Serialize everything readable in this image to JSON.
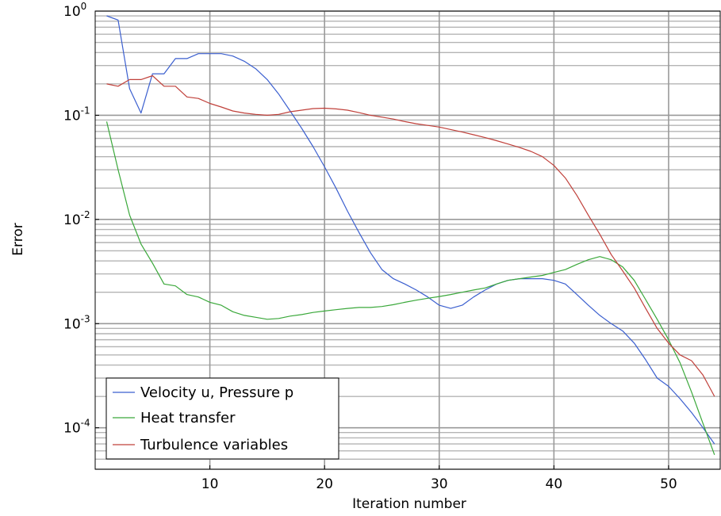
{
  "chart_data": {
    "type": "line",
    "xlabel": "Iteration number",
    "ylabel": "Error",
    "xlim": [
      0,
      54.5
    ],
    "ylim": [
      4e-05,
      1
    ],
    "yscale": "log",
    "grid": true,
    "legend_position": "bottom-left",
    "x_ticks": [
      "10",
      "20",
      "30",
      "40",
      "50"
    ],
    "x_tick_values": [
      10,
      20,
      30,
      40,
      50
    ],
    "y_ticks": [
      {
        "value": 1,
        "base": "10",
        "exp": "0"
      },
      {
        "value": 0.1,
        "base": "10",
        "exp": "-1"
      },
      {
        "value": 0.01,
        "base": "10",
        "exp": "-2"
      },
      {
        "value": 0.001,
        "base": "10",
        "exp": "-3"
      },
      {
        "value": 0.0001,
        "base": "10",
        "exp": "-4"
      }
    ],
    "series": [
      {
        "name": "Velocity u, Pressure p",
        "color": "#3b5fcf",
        "x": [
          1,
          2,
          3,
          4,
          5,
          6,
          7,
          8,
          9,
          10,
          11,
          12,
          13,
          14,
          15,
          16,
          17,
          18,
          19,
          20,
          21,
          22,
          23,
          24,
          25,
          26,
          27,
          28,
          29,
          30,
          31,
          32,
          33,
          34,
          35,
          36,
          37,
          38,
          39,
          40,
          41,
          42,
          43,
          44,
          45,
          46,
          47,
          48,
          49,
          50,
          51,
          52,
          53,
          54
        ],
        "y": [
          0.9,
          0.82,
          0.18,
          0.105,
          0.25,
          0.25,
          0.35,
          0.35,
          0.39,
          0.39,
          0.39,
          0.37,
          0.33,
          0.28,
          0.22,
          0.16,
          0.11,
          0.075,
          0.05,
          0.032,
          0.02,
          0.012,
          0.0075,
          0.0048,
          0.0033,
          0.0027,
          0.0024,
          0.0021,
          0.0018,
          0.0015,
          0.0014,
          0.0015,
          0.0018,
          0.0021,
          0.0024,
          0.0026,
          0.0027,
          0.0027,
          0.0027,
          0.0026,
          0.0024,
          0.0019,
          0.0015,
          0.0012,
          0.001,
          0.00085,
          0.00065,
          0.00045,
          0.0003,
          0.00025,
          0.00019,
          0.00014,
          0.0001,
          7e-05
        ]
      },
      {
        "name": "Heat transfer",
        "color": "#3aa83a",
        "x": [
          1,
          2,
          3,
          4,
          5,
          6,
          7,
          8,
          9,
          10,
          11,
          12,
          13,
          14,
          15,
          16,
          17,
          18,
          19,
          20,
          21,
          22,
          23,
          24,
          25,
          26,
          27,
          28,
          29,
          30,
          31,
          32,
          33,
          34,
          35,
          36,
          37,
          38,
          39,
          40,
          41,
          42,
          43,
          44,
          45,
          46,
          47,
          48,
          49,
          50,
          51,
          52,
          53,
          54
        ],
        "y": [
          0.087,
          0.03,
          0.011,
          0.0058,
          0.0038,
          0.0024,
          0.0023,
          0.0019,
          0.0018,
          0.0016,
          0.0015,
          0.0013,
          0.0012,
          0.00115,
          0.0011,
          0.00112,
          0.00118,
          0.00122,
          0.00128,
          0.00132,
          0.00136,
          0.0014,
          0.00143,
          0.00143,
          0.00146,
          0.00152,
          0.0016,
          0.00168,
          0.00175,
          0.00182,
          0.0019,
          0.002,
          0.0021,
          0.0022,
          0.0024,
          0.0026,
          0.0027,
          0.0028,
          0.0029,
          0.0031,
          0.0033,
          0.0037,
          0.0041,
          0.0044,
          0.0041,
          0.0035,
          0.0026,
          0.0017,
          0.0011,
          0.0007,
          0.00042,
          0.00022,
          0.00011,
          5.5e-05
        ]
      },
      {
        "name": "Turbulence variables",
        "color": "#c0403a",
        "x": [
          1,
          2,
          3,
          4,
          5,
          6,
          7,
          8,
          9,
          10,
          11,
          12,
          13,
          14,
          15,
          16,
          17,
          18,
          19,
          20,
          21,
          22,
          23,
          24,
          25,
          26,
          27,
          28,
          29,
          30,
          31,
          32,
          33,
          34,
          35,
          36,
          37,
          38,
          39,
          40,
          41,
          42,
          43,
          44,
          45,
          46,
          47,
          48,
          49,
          50,
          51,
          52,
          53,
          54
        ],
        "y": [
          0.2,
          0.19,
          0.22,
          0.22,
          0.24,
          0.19,
          0.19,
          0.15,
          0.145,
          0.13,
          0.12,
          0.11,
          0.105,
          0.102,
          0.1,
          0.102,
          0.108,
          0.112,
          0.116,
          0.117,
          0.115,
          0.112,
          0.106,
          0.1,
          0.096,
          0.092,
          0.087,
          0.083,
          0.08,
          0.077,
          0.073,
          0.069,
          0.065,
          0.061,
          0.057,
          0.053,
          0.049,
          0.045,
          0.04,
          0.033,
          0.025,
          0.017,
          0.011,
          0.0072,
          0.0046,
          0.0032,
          0.0022,
          0.0014,
          0.0009,
          0.00065,
          0.0005,
          0.00044,
          0.00032,
          0.0002
        ]
      }
    ]
  }
}
